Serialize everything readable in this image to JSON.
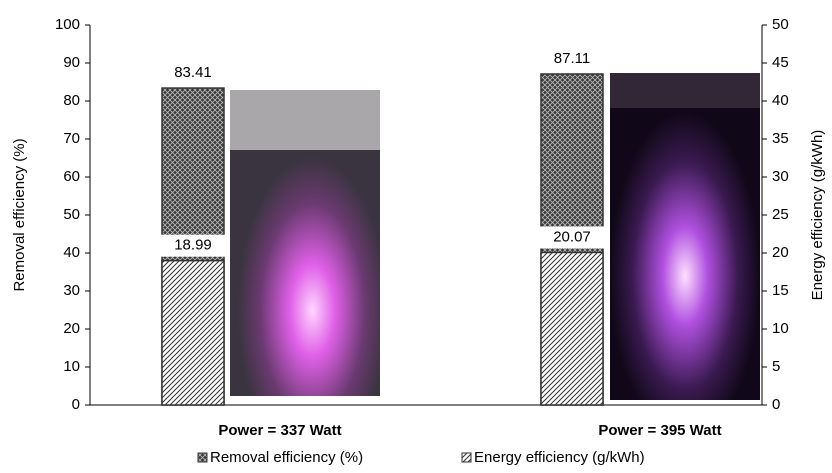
{
  "chart_data": {
    "type": "bar",
    "categories": [
      "Power = 337 Watt",
      "Power = 395 Watt"
    ],
    "series": [
      {
        "name": "Removal efficiency (%)",
        "color": "#333333",
        "values": [
          83.41,
          87.11
        ]
      },
      {
        "name": "Energy efficiency (g/kWh)",
        "color": "#333333",
        "axis": "y2",
        "values": [
          18.99,
          20.07
        ]
      }
    ],
    "ylabel": "Removal efficiency (%)",
    "y2label": "Energy efficiency (g/kWh)",
    "ylim": [
      0,
      100
    ],
    "yticks": [
      0,
      10,
      20,
      30,
      40,
      50,
      60,
      70,
      80,
      90,
      100
    ],
    "y2lim": [
      0,
      50
    ],
    "y2ticks": [
      0,
      5,
      10,
      15,
      20,
      25,
      30,
      35,
      40,
      45,
      50
    ],
    "legend": "bottom"
  }
}
